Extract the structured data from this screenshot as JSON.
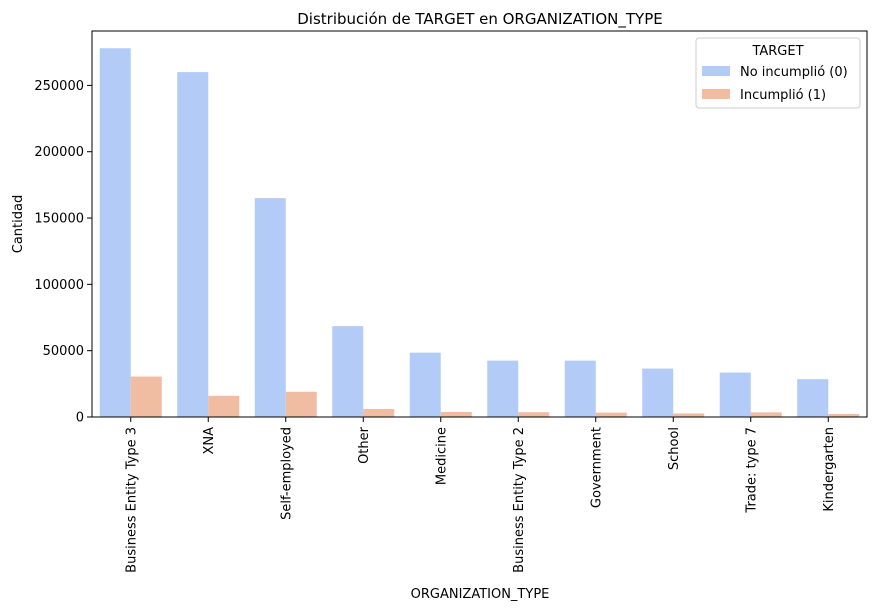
{
  "chart_data": {
    "type": "bar",
    "title": "Distribución de TARGET en ORGANIZATION_TYPE",
    "xlabel": "ORGANIZATION_TYPE",
    "ylabel": "Cantidad",
    "categories": [
      "Business Entity Type 3",
      "XNA",
      "Self-employed",
      "Other",
      "Medicine",
      "Business Entity Type 2",
      "Government",
      "School",
      "Trade: type 7",
      "Kindergarten"
    ],
    "series": [
      {
        "name": "No incumplió (0)",
        "color": "#b3cbf7",
        "values": [
          278000,
          260000,
          165000,
          68500,
          48500,
          42500,
          42500,
          36500,
          33500,
          28500
        ]
      },
      {
        "name": "Incumplió (1)",
        "color": "#f0bca2",
        "values": [
          30500,
          16000,
          19000,
          6000,
          3800,
          3600,
          3300,
          2700,
          3500,
          2300
        ]
      }
    ],
    "ylim": [
      0,
      291000
    ],
    "yticks": [
      0,
      50000,
      100000,
      150000,
      200000,
      250000
    ],
    "legend": {
      "title": "TARGET",
      "placement": "top-right"
    },
    "grid": false
  }
}
